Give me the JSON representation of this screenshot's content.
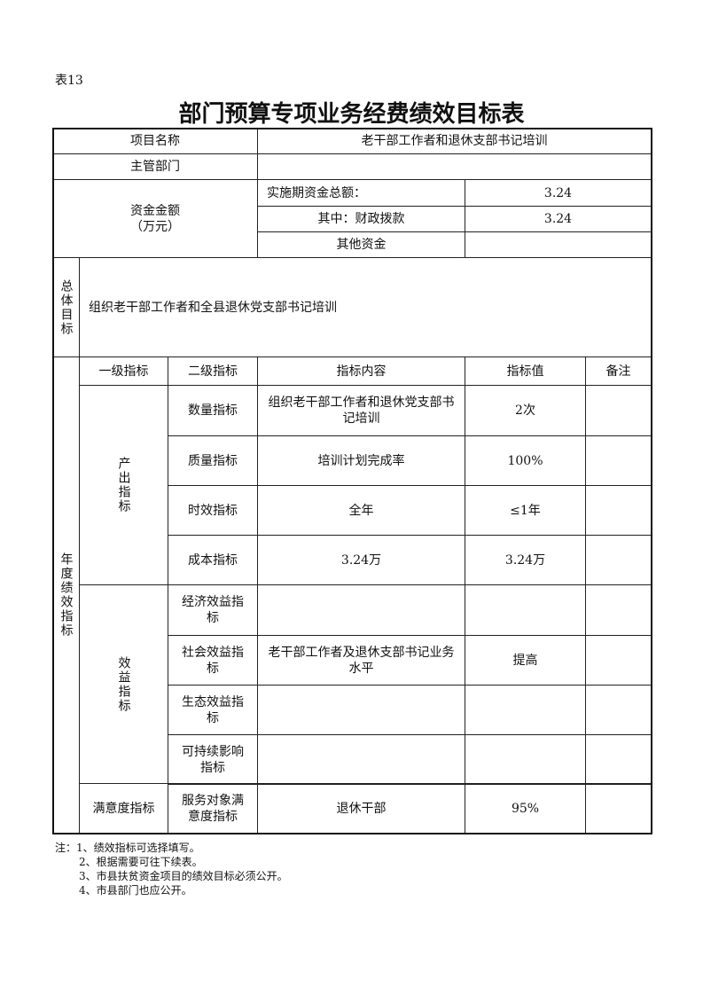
{
  "table_no": "表13",
  "title": "部门预算专项业务经费绩效目标表",
  "project_name_label": "项目名称",
  "project_name": "老干部工作者和退休支部书记培训",
  "dept_label": "主管部门",
  "dept": "",
  "funds_label": "资金金额",
  "funds_unit": "（万元）",
  "funds": [
    {
      "label": "实施期资金总额：",
      "value": "3.24"
    },
    {
      "label": "其中：财政拨款",
      "value": "3.24"
    },
    {
      "label": "其他资金",
      "value": ""
    }
  ],
  "goal_label": "总体目标",
  "goal": "组织老干部工作者和全县退休党支部书记培训",
  "annual_label": "年度绩效指标",
  "headers": [
    "一级指标",
    "二级指标",
    "指标内容",
    "指标值",
    "备注"
  ],
  "output_label": "产出指标",
  "output_rows": [
    {
      "l2": "数量指标",
      "content": "组织老干部工作者和退休党支部书记培训",
      "value": "2次",
      "note": ""
    },
    {
      "l2": "质量指标",
      "content": "培训计划完成率",
      "value": "100%",
      "note": ""
    },
    {
      "l2": "时效指标",
      "content": "全年",
      "value": "≤1年",
      "note": ""
    },
    {
      "l2": "成本指标",
      "content": "3.24万",
      "value": "3.24万",
      "note": ""
    }
  ],
  "benefit_label": "效益指标",
  "benefit_rows": [
    {
      "l2": "经济效益指标",
      "content": "",
      "value": "",
      "note": ""
    },
    {
      "l2": "社会效益指标",
      "content": "老干部工作者及退休支部书记业务水平",
      "value": "提高",
      "note": ""
    },
    {
      "l2": "生态效益指标",
      "content": "",
      "value": "",
      "note": ""
    },
    {
      "l2": "可持续影响指标",
      "content": "",
      "value": "",
      "note": ""
    }
  ],
  "satisfaction": {
    "l1": "满意度指标",
    "l2": "服务对象满意度指标",
    "content": "退休干部",
    "value": "95%",
    "note": ""
  },
  "notes": [
    "注：1、绩效指标可选择填写。",
    "2、根据需要可往下续表。",
    "3、市县扶贫资金项目的绩效目标必须公开。",
    "4、市县部门也应公开。"
  ]
}
